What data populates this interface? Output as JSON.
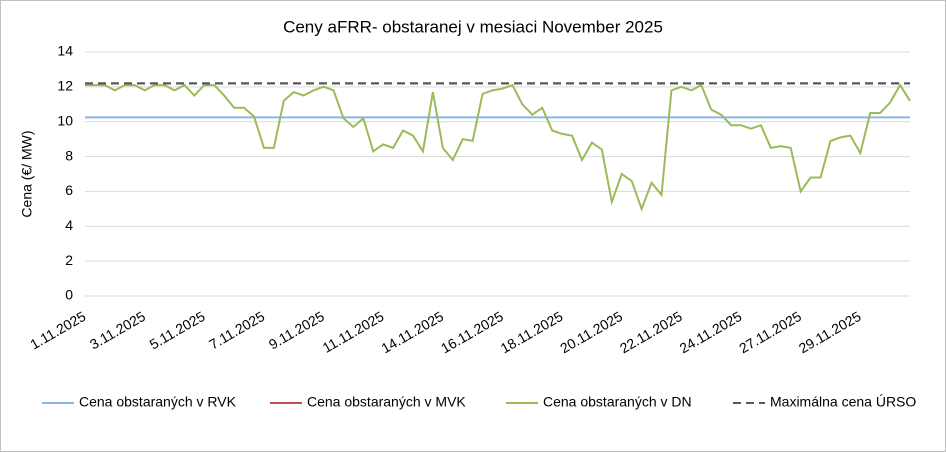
{
  "chart_data": {
    "type": "line",
    "title": "Ceny aFRR- obstaranej v mesiaci November 2025",
    "y_label": "Cena (€/ MW)",
    "categories": [
      "1.11.2025",
      null,
      null,
      null,
      null,
      null,
      "3.11.2025",
      null,
      null,
      null,
      null,
      null,
      "5.11.2025",
      null,
      null,
      null,
      null,
      null,
      "7.11.2025",
      null,
      null,
      null,
      null,
      null,
      "9.11.2025",
      null,
      null,
      null,
      null,
      null,
      "11.11.2025",
      null,
      null,
      null,
      null,
      null,
      "14.11.2025",
      null,
      null,
      null,
      null,
      null,
      "16.11.2025",
      null,
      null,
      null,
      null,
      null,
      "18.11.2025",
      null,
      null,
      null,
      null,
      null,
      "20.11.2025",
      null,
      null,
      null,
      null,
      null,
      "22.11.2025",
      null,
      null,
      null,
      null,
      null,
      "24.11.2025",
      null,
      null,
      null,
      null,
      null,
      "27.11.2025",
      null,
      null,
      null,
      null,
      null,
      "29.11.2025",
      null,
      null,
      null,
      null,
      null
    ],
    "series": [
      {
        "name": "Cena obstaraných v RVK",
        "color": "#8eb4e3",
        "dash": false,
        "values": [
          10.25,
          10.25,
          10.25,
          10.25,
          10.25,
          10.25,
          10.25,
          10.25,
          10.25,
          10.25,
          10.25,
          10.25,
          10.25,
          10.25,
          10.25,
          10.25,
          10.25,
          10.25,
          10.25,
          10.25,
          10.25,
          10.25,
          10.25,
          10.25,
          10.25,
          10.25,
          10.25,
          10.25,
          10.25,
          10.25,
          10.25,
          10.25,
          10.25,
          10.25,
          10.25,
          10.25,
          10.25,
          10.25,
          10.25,
          10.25,
          10.25,
          10.25,
          10.25,
          10.25,
          10.25,
          10.25,
          10.25,
          10.25,
          10.25,
          10.25,
          10.25,
          10.25,
          10.25,
          10.25,
          10.25,
          10.25,
          10.25,
          10.25,
          10.25,
          10.25,
          10.25,
          10.25,
          10.25,
          10.25,
          10.25,
          10.25,
          10.25,
          10.25,
          10.25,
          10.25,
          10.25,
          10.25,
          10.25,
          10.25,
          10.25,
          10.25,
          10.25,
          10.25,
          10.25,
          10.25,
          10.25,
          10.25,
          10.25,
          10.25
        ]
      },
      {
        "name": "Cena obstaraných v MVK",
        "color": "#c0504d",
        "dash": false,
        "values": [
          null,
          null,
          null,
          null,
          null,
          null,
          null,
          null,
          null,
          null,
          null,
          null,
          null,
          null,
          null,
          null,
          null,
          null,
          null,
          null,
          null,
          null,
          null,
          null,
          null,
          null,
          null,
          null,
          null,
          null,
          null,
          null,
          null,
          null,
          null,
          null,
          null,
          null,
          null,
          null,
          null,
          null,
          null,
          null,
          null,
          null,
          null,
          null,
          null,
          null,
          null,
          null,
          null,
          null,
          null,
          null,
          null,
          null,
          null,
          null,
          null,
          null,
          null,
          null,
          null,
          null,
          null,
          null,
          null,
          null,
          null,
          null,
          null,
          null,
          null,
          null,
          null,
          null,
          null,
          null,
          null,
          null,
          null,
          null
        ]
      },
      {
        "name": "Cena obstaraných v DN",
        "color": "#9bbb59",
        "dash": false,
        "values": [
          12.1,
          12.1,
          12.1,
          11.8,
          12.1,
          12.1,
          11.8,
          12.1,
          12.1,
          11.8,
          12.1,
          11.5,
          12.1,
          12.1,
          11.5,
          10.8,
          10.8,
          10.3,
          8.5,
          8.5,
          11.2,
          11.7,
          11.5,
          11.8,
          12.0,
          11.8,
          10.2,
          9.7,
          10.2,
          8.3,
          8.7,
          8.5,
          9.5,
          9.2,
          8.3,
          11.7,
          8.5,
          7.8,
          9.0,
          8.9,
          11.6,
          11.8,
          11.9,
          12.1,
          11.0,
          10.4,
          10.8,
          9.5,
          9.3,
          9.2,
          7.8,
          8.8,
          8.4,
          5.4,
          7.0,
          6.6,
          5.0,
          6.5,
          5.8,
          11.8,
          12.0,
          11.8,
          12.1,
          10.7,
          10.4,
          9.8,
          9.8,
          9.6,
          9.8,
          8.5,
          8.6,
          8.5,
          6.0,
          6.8,
          6.8,
          8.9,
          9.1,
          9.2,
          8.2,
          10.5,
          10.5,
          11.1,
          12.1,
          11.2
        ]
      },
      {
        "name": "Maximálna cena ÚRSO",
        "color": "#595959",
        "dash": true,
        "values": [
          12.2,
          12.2,
          12.2,
          12.2,
          12.2,
          12.2,
          12.2,
          12.2,
          12.2,
          12.2,
          12.2,
          12.2,
          12.2,
          12.2,
          12.2,
          12.2,
          12.2,
          12.2,
          12.2,
          12.2,
          12.2,
          12.2,
          12.2,
          12.2,
          12.2,
          12.2,
          12.2,
          12.2,
          12.2,
          12.2,
          12.2,
          12.2,
          12.2,
          12.2,
          12.2,
          12.2,
          12.2,
          12.2,
          12.2,
          12.2,
          12.2,
          12.2,
          12.2,
          12.2,
          12.2,
          12.2,
          12.2,
          12.2,
          12.2,
          12.2,
          12.2,
          12.2,
          12.2,
          12.2,
          12.2,
          12.2,
          12.2,
          12.2,
          12.2,
          12.2,
          12.2,
          12.2,
          12.2,
          12.2,
          12.2,
          12.2,
          12.2,
          12.2,
          12.2,
          12.2,
          12.2,
          12.2,
          12.2,
          12.2,
          12.2,
          12.2,
          12.2,
          12.2,
          12.2,
          12.2,
          12.2,
          12.2,
          12.2,
          12.2
        ]
      }
    ],
    "ylim": [
      0,
      14
    ],
    "yticks": [
      0,
      2,
      4,
      6,
      8,
      10,
      12,
      14
    ],
    "grid": true,
    "legend": "bottom"
  }
}
